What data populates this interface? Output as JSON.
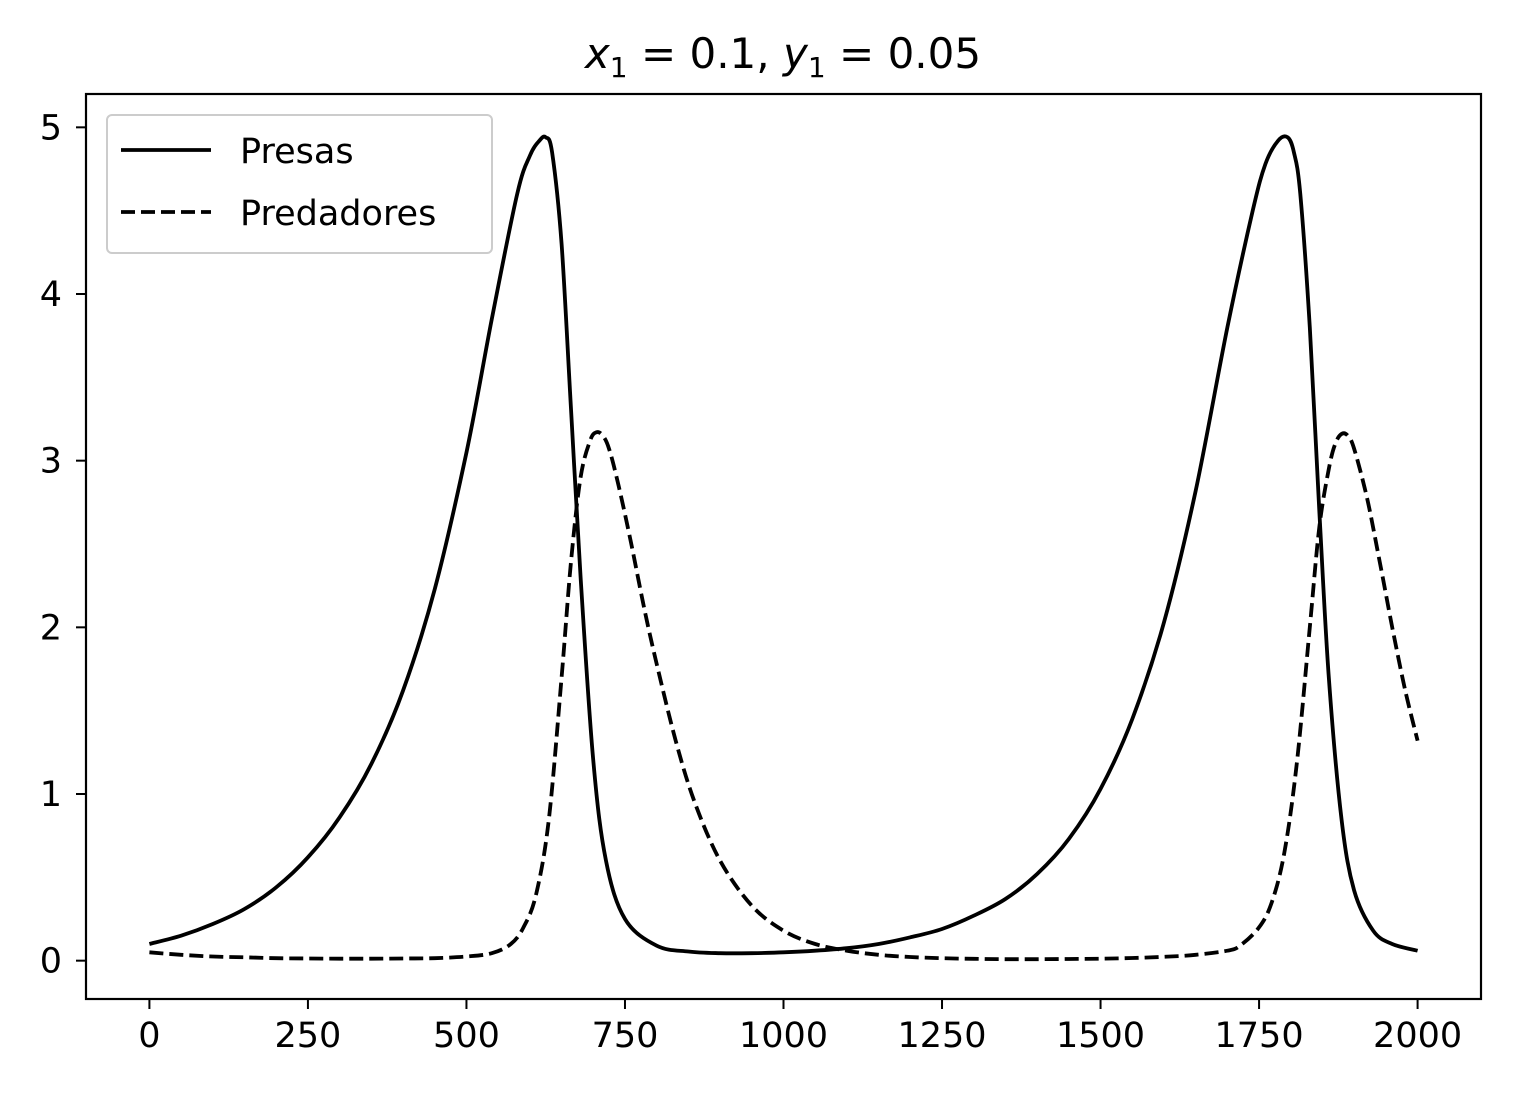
{
  "chart_data": {
    "type": "line",
    "title": {
      "x_var": "x",
      "x_sub": "1",
      "x_rest": " = 0.1, ",
      "y_var": "y",
      "y_sub": "1",
      "y_rest": " = 0.05"
    },
    "xlabel": "",
    "ylabel": "",
    "xlim": [
      -100,
      2100
    ],
    "ylim": [
      -0.23,
      5.2
    ],
    "xticks": [
      0,
      250,
      500,
      750,
      1000,
      1250,
      1500,
      1750,
      2000
    ],
    "yticks": [
      0,
      1,
      2,
      3,
      4,
      5
    ],
    "grid": false,
    "legend": {
      "location": "upper-left"
    },
    "series": [
      {
        "name": "Presas",
        "style": "solid",
        "color": "#000000",
        "x": [
          0,
          50,
          100,
          150,
          200,
          250,
          300,
          350,
          400,
          450,
          500,
          540,
          580,
          600,
          615,
          625,
          635,
          650,
          665,
          680,
          700,
          720,
          750,
          800,
          850,
          900,
          950,
          1000,
          1050,
          1100,
          1150,
          1200,
          1250,
          1300,
          1350,
          1400,
          1450,
          1500,
          1550,
          1600,
          1650,
          1700,
          1740,
          1760,
          1780,
          1795,
          1805,
          1815,
          1830,
          1845,
          1860,
          1880,
          1900,
          1930,
          1960,
          2000
        ],
        "y": [
          0.1,
          0.15,
          0.22,
          0.31,
          0.44,
          0.62,
          0.86,
          1.18,
          1.62,
          2.23,
          3.05,
          3.85,
          4.6,
          4.83,
          4.92,
          4.94,
          4.85,
          4.3,
          3.3,
          2.3,
          1.2,
          0.6,
          0.25,
          0.09,
          0.055,
          0.045,
          0.045,
          0.05,
          0.06,
          0.075,
          0.1,
          0.14,
          0.19,
          0.27,
          0.37,
          0.52,
          0.73,
          1.03,
          1.45,
          2.03,
          2.82,
          3.8,
          4.5,
          4.78,
          4.92,
          4.94,
          4.85,
          4.6,
          3.8,
          2.7,
          1.7,
          0.85,
          0.42,
          0.18,
          0.1,
          0.06
        ]
      },
      {
        "name": "Predadores",
        "style": "dashed",
        "color": "#000000",
        "x": [
          0,
          50,
          100,
          150,
          200,
          250,
          300,
          350,
          400,
          450,
          500,
          540,
          570,
          590,
          610,
          630,
          650,
          665,
          680,
          695,
          705,
          715,
          725,
          740,
          760,
          780,
          800,
          830,
          860,
          900,
          950,
          1000,
          1050,
          1100,
          1150,
          1200,
          1250,
          1300,
          1350,
          1400,
          1450,
          1500,
          1550,
          1600,
          1650,
          1700,
          1720,
          1750,
          1770,
          1790,
          1810,
          1830,
          1845,
          1860,
          1870,
          1880,
          1890,
          1900,
          1920,
          1940,
          1960,
          1980,
          2000
        ],
        "y": [
          0.05,
          0.035,
          0.025,
          0.02,
          0.015,
          0.013,
          0.012,
          0.012,
          0.013,
          0.015,
          0.025,
          0.045,
          0.1,
          0.2,
          0.4,
          0.85,
          1.7,
          2.4,
          2.9,
          3.12,
          3.17,
          3.15,
          3.07,
          2.85,
          2.5,
          2.12,
          1.78,
          1.32,
          0.95,
          0.6,
          0.33,
          0.18,
          0.1,
          0.06,
          0.035,
          0.022,
          0.015,
          0.011,
          0.009,
          0.009,
          0.01,
          0.012,
          0.016,
          0.023,
          0.035,
          0.06,
          0.09,
          0.2,
          0.35,
          0.65,
          1.2,
          2.0,
          2.6,
          2.95,
          3.1,
          3.16,
          3.15,
          3.07,
          2.78,
          2.4,
          2.0,
          1.63,
          1.32
        ]
      }
    ]
  }
}
